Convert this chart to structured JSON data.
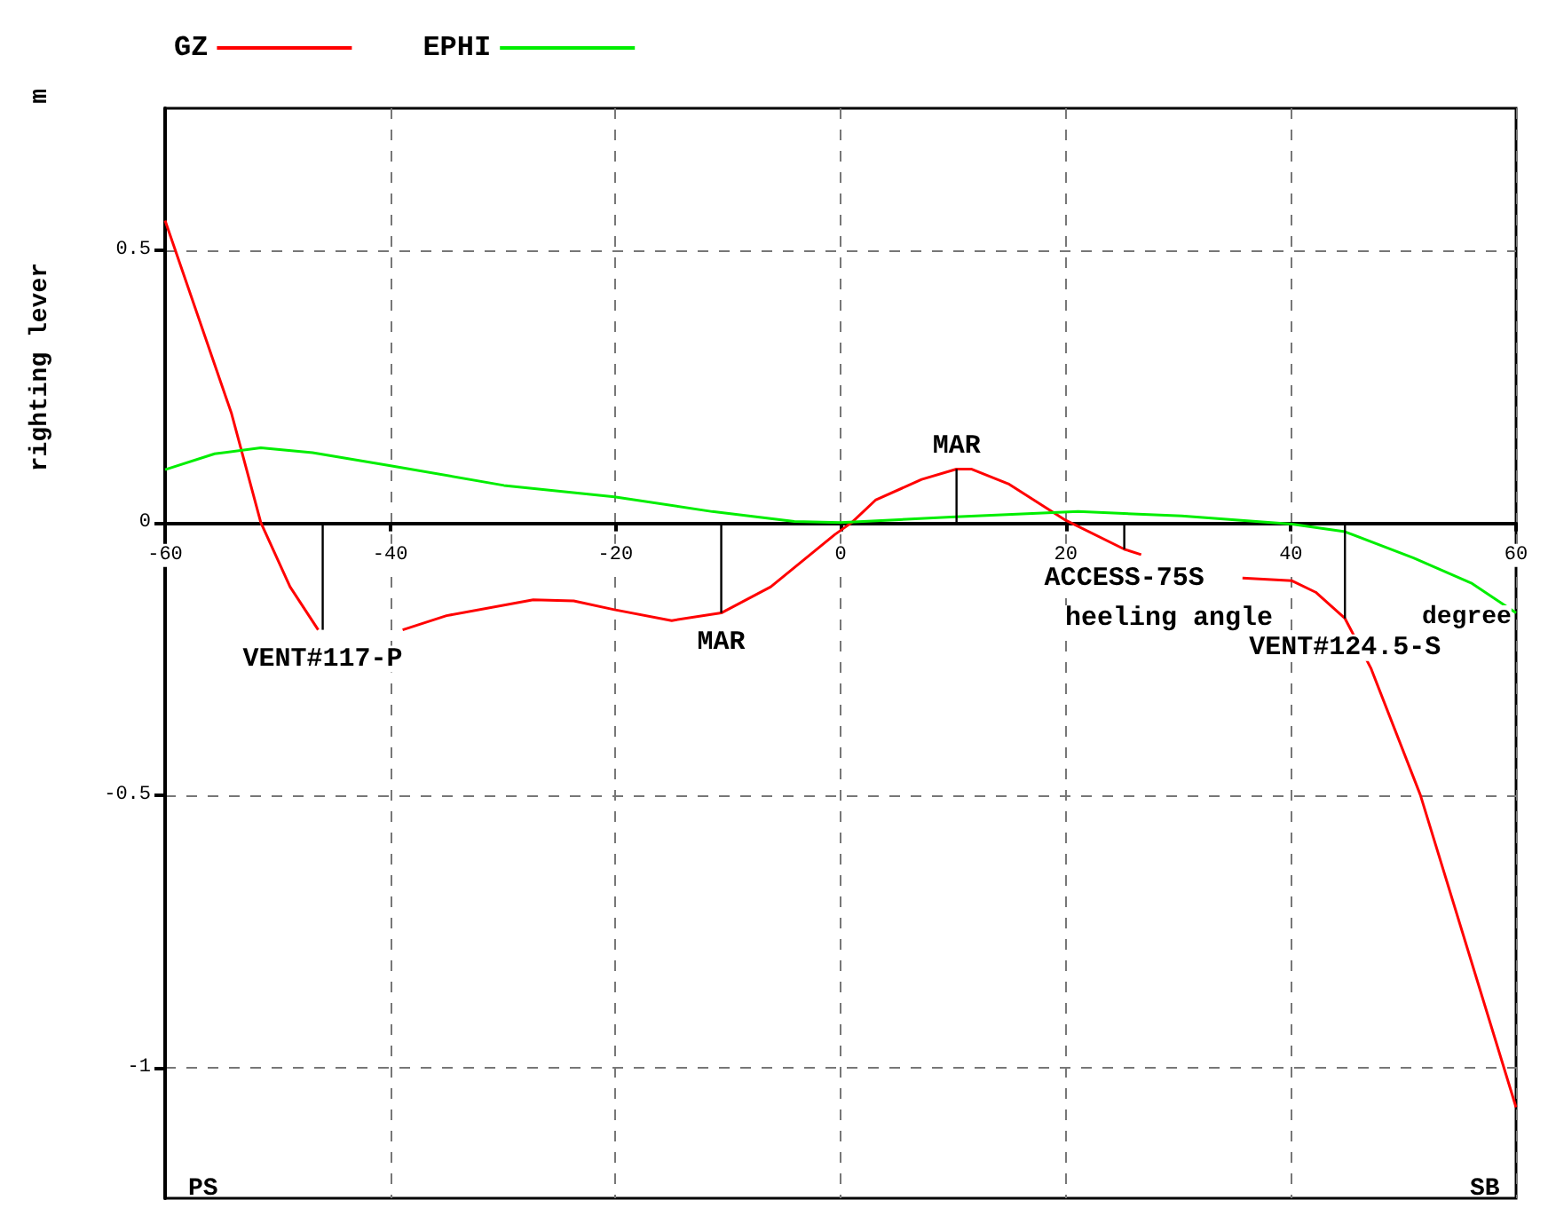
{
  "chart_data": {
    "type": "line",
    "xlabel": "heeling angle",
    "ylabel": "righting lever",
    "x": [
      -60,
      -54.1,
      -51.5,
      -48.9,
      -46.4,
      -44,
      -42,
      -40,
      -38.9,
      -35,
      -27.3,
      -23.7,
      -20.1,
      -15,
      -10.6,
      -6.2,
      -0.5,
      1,
      3.1,
      7.2,
      10.3,
      11.6,
      14.9,
      20,
      25.2,
      26.7,
      30,
      33,
      35.7,
      40.1,
      42.2,
      44.8,
      47.1,
      51.5,
      60
    ],
    "series": [
      {
        "name": "GZ",
        "color": "#ff0000",
        "values": [
          0.554,
          0.2,
          0,
          -0.118,
          -0.197,
          null,
          null,
          null,
          -0.197,
          -0.171,
          -0.142,
          -0.144,
          -0.16,
          -0.18,
          -0.166,
          -0.118,
          -0.022,
          0,
          0.041,
          0.079,
          0.098,
          0.098,
          0.071,
          0.004,
          -0.049,
          -0.059,
          null,
          null,
          -0.102,
          -0.107,
          -0.128,
          -0.176,
          -0.267,
          -0.5,
          -1.073
        ]
      },
      {
        "name": "EPHI",
        "color": "#00ee00",
        "x": [
          -60,
          -55.6,
          -51.5,
          -46.9,
          -40.2,
          -29.9,
          -20.1,
          -11.4,
          -4.1,
          0,
          9.8,
          21.1,
          30.3,
          40.1,
          44.8,
          50.9,
          56.1,
          60
        ],
        "values": [
          0.097,
          0.126,
          0.137,
          0.128,
          0.105,
          0.068,
          0.047,
          0.02,
          0.002,
          0,
          0.01,
          0.02,
          0.012,
          -0.003,
          -0.017,
          -0.065,
          -0.112,
          -0.166
        ]
      }
    ],
    "xlim": [
      -60,
      60
    ],
    "xticks": [
      -60,
      -40,
      -20,
      0,
      20,
      40,
      60
    ],
    "ylim": [
      -1.24,
      0.76
    ],
    "yticks": [
      0.5,
      0,
      -0.5,
      -1
    ],
    "grid": true,
    "legend": "top left",
    "marker": "none",
    "line_style": "solid",
    "annotations": [
      {
        "text": "VENT#117-P",
        "x": -46,
        "y": -0.197
      },
      {
        "text": "MAR",
        "x": -10.6,
        "y": -0.166
      },
      {
        "text": "MAR",
        "x": 10.3,
        "y": 0.098
      },
      {
        "text": "ACCESS-75S",
        "x": 25.2,
        "y": -0.049
      },
      {
        "text": "VENT#124.5-S",
        "x": 44.8,
        "y": -0.176
      },
      "m",
      "degree",
      "PS",
      "SB"
    ]
  }
}
